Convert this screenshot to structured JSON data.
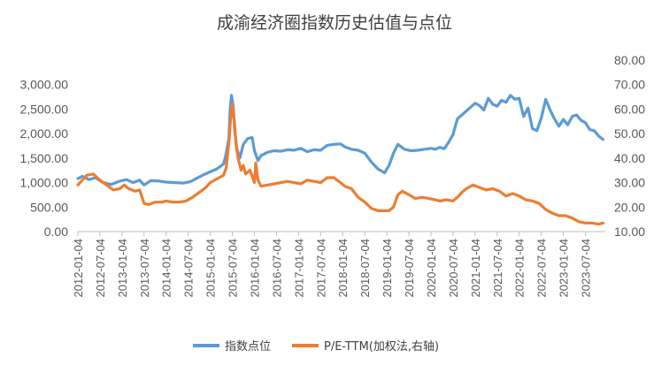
{
  "chart_data": {
    "type": "line",
    "title": "成渝经济圈指数历史估值与点位",
    "xlabel": "",
    "ylabel": "",
    "y2label": "",
    "ylim": [
      0,
      3500
    ],
    "y2lim": [
      10,
      80
    ],
    "yticks": [
      "0.00",
      "500.00",
      "1,000.00",
      "1,500.00",
      "2,000.00",
      "2,500.00",
      "3,000.00"
    ],
    "y2ticks": [
      "10.00",
      "20.00",
      "30.00",
      "40.00",
      "50.00",
      "60.00",
      "70.00",
      "80.00"
    ],
    "xticks": [
      "2012-01-04",
      "2012-07-04",
      "2013-01-04",
      "2013-07-04",
      "2014-01-04",
      "2014-07-04",
      "2015-01-04",
      "2015-07-04",
      "2016-01-04",
      "2016-07-04",
      "2017-01-04",
      "2017-07-04",
      "2018-01-04",
      "2018-07-04",
      "2019-01-04",
      "2019-07-04",
      "2020-01-04",
      "2020-07-04",
      "2021-01-04",
      "2021-07-04",
      "2022-01-04",
      "2022-07-04",
      "2023-01-04",
      "2023-07-04"
    ],
    "x_range": [
      2012.0,
      2023.95
    ],
    "grid": false,
    "legend_position": "bottom",
    "series": [
      {
        "name": "指数点位",
        "axis": "left",
        "color": "#5B9BD5",
        "x": [
          2012.0,
          2012.1,
          2012.25,
          2012.4,
          2012.55,
          2012.75,
          2012.95,
          2013.1,
          2013.25,
          2013.4,
          2013.5,
          2013.65,
          2013.85,
          2014.0,
          2014.2,
          2014.4,
          2014.55,
          2014.7,
          2014.85,
          2015.0,
          2015.15,
          2015.3,
          2015.35,
          2015.42,
          2015.45,
          2015.48,
          2015.52,
          2015.55,
          2015.6,
          2015.67,
          2015.75,
          2015.85,
          2015.95,
          2016.0,
          2016.08,
          2016.15,
          2016.3,
          2016.45,
          2016.6,
          2016.75,
          2016.9,
          2017.05,
          2017.2,
          2017.35,
          2017.5,
          2017.65,
          2017.8,
          2017.95,
          2018.05,
          2018.2,
          2018.35,
          2018.5,
          2018.65,
          2018.8,
          2018.95,
          2019.05,
          2019.15,
          2019.25,
          2019.4,
          2019.55,
          2019.7,
          2019.85,
          2020.0,
          2020.1,
          2020.2,
          2020.3,
          2020.4,
          2020.5,
          2020.6,
          2020.7,
          2020.85,
          2021.0,
          2021.1,
          2021.2,
          2021.3,
          2021.4,
          2021.5,
          2021.6,
          2021.7,
          2021.8,
          2021.9,
          2022.0,
          2022.1,
          2022.2,
          2022.3,
          2022.4,
          2022.5,
          2022.6,
          2022.7,
          2022.8,
          2022.9,
          2023.0,
          2023.1,
          2023.2,
          2023.3,
          2023.4,
          2023.5,
          2023.6,
          2023.7,
          2023.8,
          2023.9
        ],
        "values": [
          1080,
          1130,
          1060,
          1100,
          1010,
          960,
          1030,
          1060,
          1000,
          1050,
          950,
          1040,
          1030,
          1010,
          1000,
          990,
          1020,
          1090,
          1160,
          1220,
          1280,
          1380,
          1550,
          1900,
          2500,
          2780,
          2550,
          2100,
          1700,
          1500,
          1780,
          1900,
          1920,
          1650,
          1450,
          1550,
          1620,
          1650,
          1640,
          1670,
          1660,
          1700,
          1630,
          1670,
          1660,
          1760,
          1780,
          1790,
          1730,
          1680,
          1660,
          1600,
          1420,
          1280,
          1200,
          1350,
          1600,
          1780,
          1680,
          1650,
          1660,
          1680,
          1700,
          1680,
          1720,
          1690,
          1820,
          1980,
          2300,
          2380,
          2500,
          2620,
          2570,
          2480,
          2720,
          2600,
          2560,
          2680,
          2640,
          2780,
          2700,
          2720,
          2350,
          2520,
          2100,
          2060,
          2320,
          2700,
          2480,
          2300,
          2150,
          2290,
          2180,
          2350,
          2380,
          2270,
          2220,
          2080,
          2060,
          1950,
          1880
        ]
      },
      {
        "name": "P/E-TTM(加权法,右轴)",
        "axis": "right",
        "color": "#ED7D31",
        "x": [
          2012.0,
          2012.1,
          2012.2,
          2012.35,
          2012.5,
          2012.65,
          2012.8,
          2012.95,
          2013.05,
          2013.15,
          2013.3,
          2013.4,
          2013.5,
          2013.6,
          2013.75,
          2013.9,
          2014.0,
          2014.15,
          2014.3,
          2014.45,
          2014.6,
          2014.75,
          2014.9,
          2015.0,
          2015.15,
          2015.3,
          2015.36,
          2015.42,
          2015.46,
          2015.5,
          2015.55,
          2015.58,
          2015.63,
          2015.7,
          2015.75,
          2015.8,
          2015.9,
          2016.0,
          2016.03,
          2016.08,
          2016.15,
          2016.3,
          2016.45,
          2016.6,
          2016.75,
          2016.9,
          2017.05,
          2017.2,
          2017.35,
          2017.5,
          2017.65,
          2017.8,
          2017.95,
          2018.05,
          2018.2,
          2018.35,
          2018.5,
          2018.65,
          2018.8,
          2018.95,
          2019.05,
          2019.15,
          2019.25,
          2019.35,
          2019.5,
          2019.65,
          2019.8,
          2019.95,
          2020.1,
          2020.2,
          2020.35,
          2020.5,
          2020.6,
          2020.7,
          2020.8,
          2020.95,
          2021.1,
          2021.25,
          2021.4,
          2021.55,
          2021.7,
          2021.85,
          2022.0,
          2022.15,
          2022.3,
          2022.45,
          2022.6,
          2022.75,
          2022.9,
          2023.05,
          2023.2,
          2023.35,
          2023.5,
          2023.65,
          2023.8,
          2023.9
        ],
        "values": [
          29,
          31,
          33,
          33.5,
          31,
          29,
          27,
          27.5,
          29,
          27.5,
          26.5,
          27,
          21.5,
          21,
          22,
          22,
          22.5,
          22,
          22,
          22.5,
          24,
          26,
          28,
          30,
          31.5,
          33,
          36,
          46,
          56,
          62,
          54,
          46,
          40,
          35,
          37,
          33.5,
          35,
          30,
          38,
          31,
          28.5,
          29,
          29.5,
          30,
          30.5,
          30,
          29.5,
          31,
          30.5,
          30,
          32,
          32,
          30,
          28.5,
          27.5,
          24,
          22,
          19.5,
          18.5,
          18.5,
          18.5,
          20,
          25,
          26.5,
          25,
          23.5,
          24,
          23.5,
          23,
          22.5,
          23,
          22.5,
          24,
          26,
          27.5,
          29,
          28,
          27,
          27.5,
          26.5,
          24.5,
          25.5,
          24.5,
          23,
          22.5,
          21.5,
          19,
          17.5,
          16.5,
          16.5,
          15.5,
          14,
          13.5,
          13.5,
          13,
          13.5
        ]
      }
    ]
  }
}
